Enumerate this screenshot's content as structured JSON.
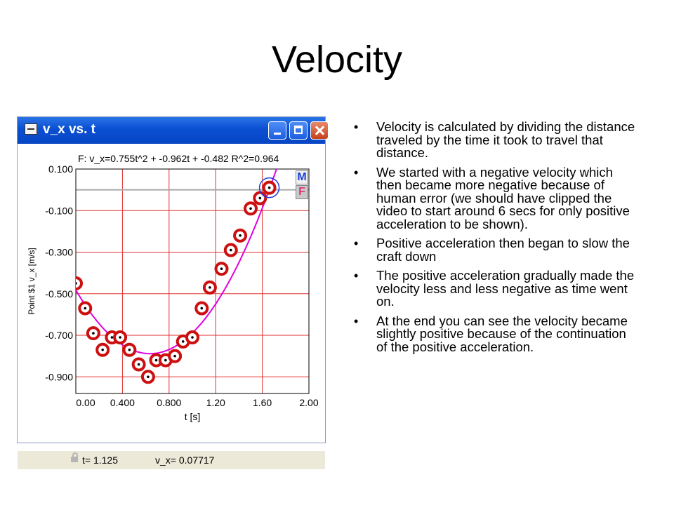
{
  "slide": {
    "title": "Velocity",
    "bullets": [
      "Velocity is calculated by dividing the distance traveled by the time it took to travel that distance.",
      "We started with a negative velocity which then became more negative because of human error (we should have clipped the video to start around 6 secs for only positive acceleration to be shown).",
      "Positive acceleration then began to slow the craft down",
      "The positive acceleration gradually made the velocity less and less negative as time went on.",
      "At the end you can see the velocity became slightly positive because of the continuation of the positive acceleration."
    ]
  },
  "window": {
    "title": "v_x vs. t",
    "icons": [
      "graph-window-icon",
      "minimize-icon",
      "maximize-icon",
      "close-icon",
      "lock-icon"
    ],
    "status_t": "t= 1.125",
    "status_v": "v_x= 0.07717",
    "mode_m": "M",
    "mode_f": "F"
  },
  "colors": {
    "grid": "#e03030",
    "fit_curve": "#e000e0",
    "marker": "#cc1010",
    "selection": "#1f3fd8",
    "titlebar": "#0a4fd2"
  },
  "chart_data": {
    "type": "scatter",
    "fit_label": "F: v_x=0.755t^2 + -0.962t + -0.482   R^2=0.964",
    "fit_coefficients": {
      "a": 0.755,
      "b": -0.962,
      "c": -0.482
    },
    "xlabel": "t [s]",
    "ylabel": "Point  $1  v_x  [m/s]",
    "xlim": [
      0,
      2.0
    ],
    "ylim": [
      -0.98,
      0.1
    ],
    "x_ticks": [
      "0.00",
      "0.400",
      "0.800",
      "1.20",
      "1.60",
      "2.00"
    ],
    "x_tick_values": [
      0,
      0.4,
      0.8,
      1.2,
      1.6,
      2.0
    ],
    "y_ticks": [
      "0.100",
      "-0.100",
      "-0.300",
      "-0.500",
      "-0.700",
      "-0.900"
    ],
    "y_tick_values": [
      0.1,
      -0.1,
      -0.3,
      -0.5,
      -0.7,
      -0.9
    ],
    "reference_line_y": 0.0,
    "grid": true,
    "points": [
      {
        "x": 0.0,
        "y": -0.45
      },
      {
        "x": 0.08,
        "y": -0.57
      },
      {
        "x": 0.15,
        "y": -0.69
      },
      {
        "x": 0.23,
        "y": -0.77
      },
      {
        "x": 0.31,
        "y": -0.71
      },
      {
        "x": 0.38,
        "y": -0.71
      },
      {
        "x": 0.46,
        "y": -0.77
      },
      {
        "x": 0.54,
        "y": -0.84
      },
      {
        "x": 0.62,
        "y": -0.9
      },
      {
        "x": 0.69,
        "y": -0.82
      },
      {
        "x": 0.77,
        "y": -0.82
      },
      {
        "x": 0.85,
        "y": -0.8
      },
      {
        "x": 0.92,
        "y": -0.73
      },
      {
        "x": 1.0,
        "y": -0.71
      },
      {
        "x": 1.08,
        "y": -0.57
      },
      {
        "x": 1.15,
        "y": -0.47
      },
      {
        "x": 1.25,
        "y": -0.38
      },
      {
        "x": 1.33,
        "y": -0.29
      },
      {
        "x": 1.41,
        "y": -0.22
      },
      {
        "x": 1.5,
        "y": -0.09
      },
      {
        "x": 1.58,
        "y": -0.04
      },
      {
        "x": 1.66,
        "y": 0.01
      }
    ],
    "selected_point_index": 21
  }
}
